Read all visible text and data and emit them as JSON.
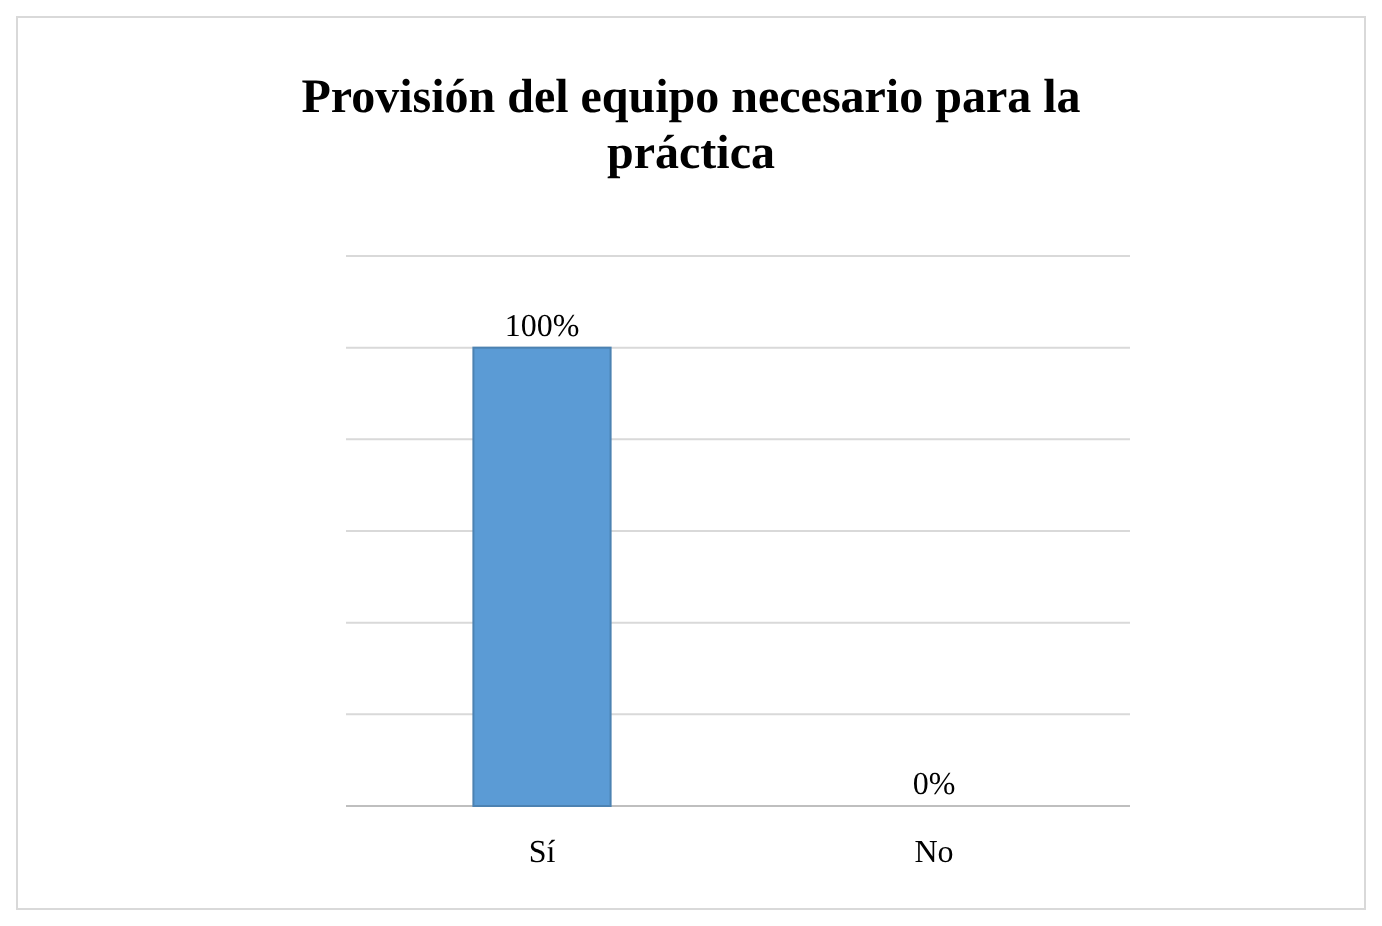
{
  "chart_data": {
    "type": "bar",
    "title": "Provisión del equipo necesario para la práctica",
    "categories": [
      "Sí",
      "No"
    ],
    "values": [
      100,
      0
    ],
    "colors": [
      "#5b9bd5",
      "#243a4f"
    ],
    "value_labels": [
      "100%",
      "0%"
    ],
    "ylim": [
      0,
      120
    ],
    "yticks": [
      {
        "value": 0,
        "label": null
      },
      {
        "value": 20,
        "label": null
      },
      {
        "value": 40,
        "label": null
      },
      {
        "value": 60,
        "label": null
      },
      {
        "value": 80,
        "label": null
      },
      {
        "value": 100,
        "label": null
      },
      {
        "value": 120,
        "label": null
      }
    ],
    "grid": "y",
    "tick_labels": "x"
  }
}
